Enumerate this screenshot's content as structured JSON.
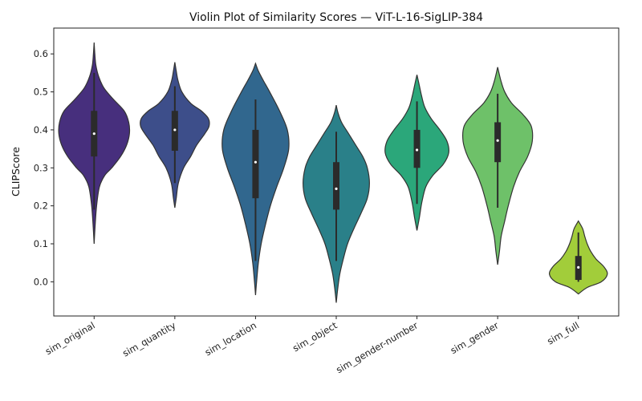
{
  "chart_data": {
    "type": "violin",
    "title": "Violin Plot of Similarity Scores — ViT-L-16-SigLIP-384",
    "xlabel": "",
    "ylabel": "CLIPScore",
    "ylim": [
      -0.09,
      0.668
    ],
    "yticks": [
      "0.0",
      "0.1",
      "0.2",
      "0.3",
      "0.4",
      "0.5",
      "0.6"
    ],
    "grid": false,
    "legend": "none",
    "categories": [
      "sim_original",
      "sim_quantity",
      "sim_location",
      "sim_object",
      "sim_gender-number",
      "sim_gender",
      "sim_full"
    ],
    "series": [
      {
        "color": "#472f7d",
        "q1": 0.33,
        "median": 0.39,
        "q3": 0.45,
        "whisker_low": 0.19,
        "whisker_high": 0.55,
        "profile": [
          [
            0.1,
            0
          ],
          [
            0.15,
            0.03
          ],
          [
            0.2,
            0.07
          ],
          [
            0.25,
            0.15
          ],
          [
            0.28,
            0.3
          ],
          [
            0.3,
            0.5
          ],
          [
            0.33,
            0.75
          ],
          [
            0.36,
            0.92
          ],
          [
            0.39,
            1.0
          ],
          [
            0.42,
            0.98
          ],
          [
            0.45,
            0.85
          ],
          [
            0.48,
            0.55
          ],
          [
            0.51,
            0.28
          ],
          [
            0.54,
            0.13
          ],
          [
            0.57,
            0.05
          ],
          [
            0.6,
            0.02
          ],
          [
            0.63,
            0
          ]
        ]
      },
      {
        "color": "#3d4e8a",
        "q1": 0.345,
        "median": 0.4,
        "q3": 0.45,
        "whisker_low": 0.26,
        "whisker_high": 0.515,
        "profile": [
          [
            0.195,
            0
          ],
          [
            0.22,
            0.04
          ],
          [
            0.26,
            0.1
          ],
          [
            0.3,
            0.25
          ],
          [
            0.33,
            0.45
          ],
          [
            0.36,
            0.62
          ],
          [
            0.39,
            0.85
          ],
          [
            0.41,
            0.97
          ],
          [
            0.43,
            0.95
          ],
          [
            0.45,
            0.75
          ],
          [
            0.47,
            0.45
          ],
          [
            0.5,
            0.2
          ],
          [
            0.53,
            0.09
          ],
          [
            0.555,
            0.04
          ],
          [
            0.578,
            0
          ]
        ]
      },
      {
        "color": "#31678e",
        "q1": 0.22,
        "median": 0.315,
        "q3": 0.4,
        "whisker_low": 0.055,
        "whisker_high": 0.48,
        "profile": [
          [
            -0.035,
            0
          ],
          [
            0.0,
            0.03
          ],
          [
            0.05,
            0.08
          ],
          [
            0.1,
            0.16
          ],
          [
            0.15,
            0.28
          ],
          [
            0.2,
            0.42
          ],
          [
            0.25,
            0.6
          ],
          [
            0.3,
            0.8
          ],
          [
            0.35,
            0.94
          ],
          [
            0.4,
            0.9
          ],
          [
            0.45,
            0.68
          ],
          [
            0.5,
            0.4
          ],
          [
            0.53,
            0.22
          ],
          [
            0.555,
            0.08
          ],
          [
            0.575,
            0
          ]
        ]
      },
      {
        "color": "#2a8089",
        "q1": 0.19,
        "median": 0.245,
        "q3": 0.315,
        "whisker_low": 0.055,
        "whisker_high": 0.395,
        "profile": [
          [
            -0.055,
            0
          ],
          [
            -0.02,
            0.04
          ],
          [
            0.02,
            0.1
          ],
          [
            0.06,
            0.2
          ],
          [
            0.1,
            0.32
          ],
          [
            0.14,
            0.5
          ],
          [
            0.18,
            0.7
          ],
          [
            0.22,
            0.88
          ],
          [
            0.26,
            0.94
          ],
          [
            0.3,
            0.88
          ],
          [
            0.33,
            0.75
          ],
          [
            0.36,
            0.55
          ],
          [
            0.39,
            0.35
          ],
          [
            0.42,
            0.15
          ],
          [
            0.445,
            0.05
          ],
          [
            0.465,
            0
          ]
        ]
      },
      {
        "color": "#2ba77a",
        "q1": 0.3,
        "median": 0.347,
        "q3": 0.4,
        "whisker_low": 0.205,
        "whisker_high": 0.475,
        "profile": [
          [
            0.135,
            0
          ],
          [
            0.17,
            0.07
          ],
          [
            0.21,
            0.14
          ],
          [
            0.25,
            0.25
          ],
          [
            0.28,
            0.45
          ],
          [
            0.31,
            0.75
          ],
          [
            0.34,
            0.9
          ],
          [
            0.37,
            0.85
          ],
          [
            0.4,
            0.65
          ],
          [
            0.43,
            0.4
          ],
          [
            0.46,
            0.22
          ],
          [
            0.49,
            0.13
          ],
          [
            0.52,
            0.06
          ],
          [
            0.545,
            0
          ]
        ]
      },
      {
        "color": "#6ec169",
        "q1": 0.315,
        "median": 0.372,
        "q3": 0.42,
        "whisker_low": 0.195,
        "whisker_high": 0.495,
        "profile": [
          [
            0.045,
            0
          ],
          [
            0.08,
            0.05
          ],
          [
            0.12,
            0.1
          ],
          [
            0.16,
            0.2
          ],
          [
            0.2,
            0.3
          ],
          [
            0.25,
            0.45
          ],
          [
            0.29,
            0.62
          ],
          [
            0.33,
            0.85
          ],
          [
            0.37,
            0.98
          ],
          [
            0.41,
            0.95
          ],
          [
            0.44,
            0.72
          ],
          [
            0.47,
            0.4
          ],
          [
            0.5,
            0.2
          ],
          [
            0.53,
            0.09
          ],
          [
            0.565,
            0
          ]
        ]
      },
      {
        "color": "#a2cd3a",
        "q1": 0.005,
        "median": 0.038,
        "q3": 0.068,
        "whisker_low": 0.0,
        "whisker_high": 0.13,
        "profile": [
          [
            -0.032,
            0
          ],
          [
            -0.015,
            0.25
          ],
          [
            0.0,
            0.65
          ],
          [
            0.02,
            0.82
          ],
          [
            0.04,
            0.72
          ],
          [
            0.06,
            0.5
          ],
          [
            0.08,
            0.35
          ],
          [
            0.1,
            0.25
          ],
          [
            0.12,
            0.18
          ],
          [
            0.14,
            0.12
          ],
          [
            0.16,
            0
          ]
        ]
      }
    ]
  }
}
